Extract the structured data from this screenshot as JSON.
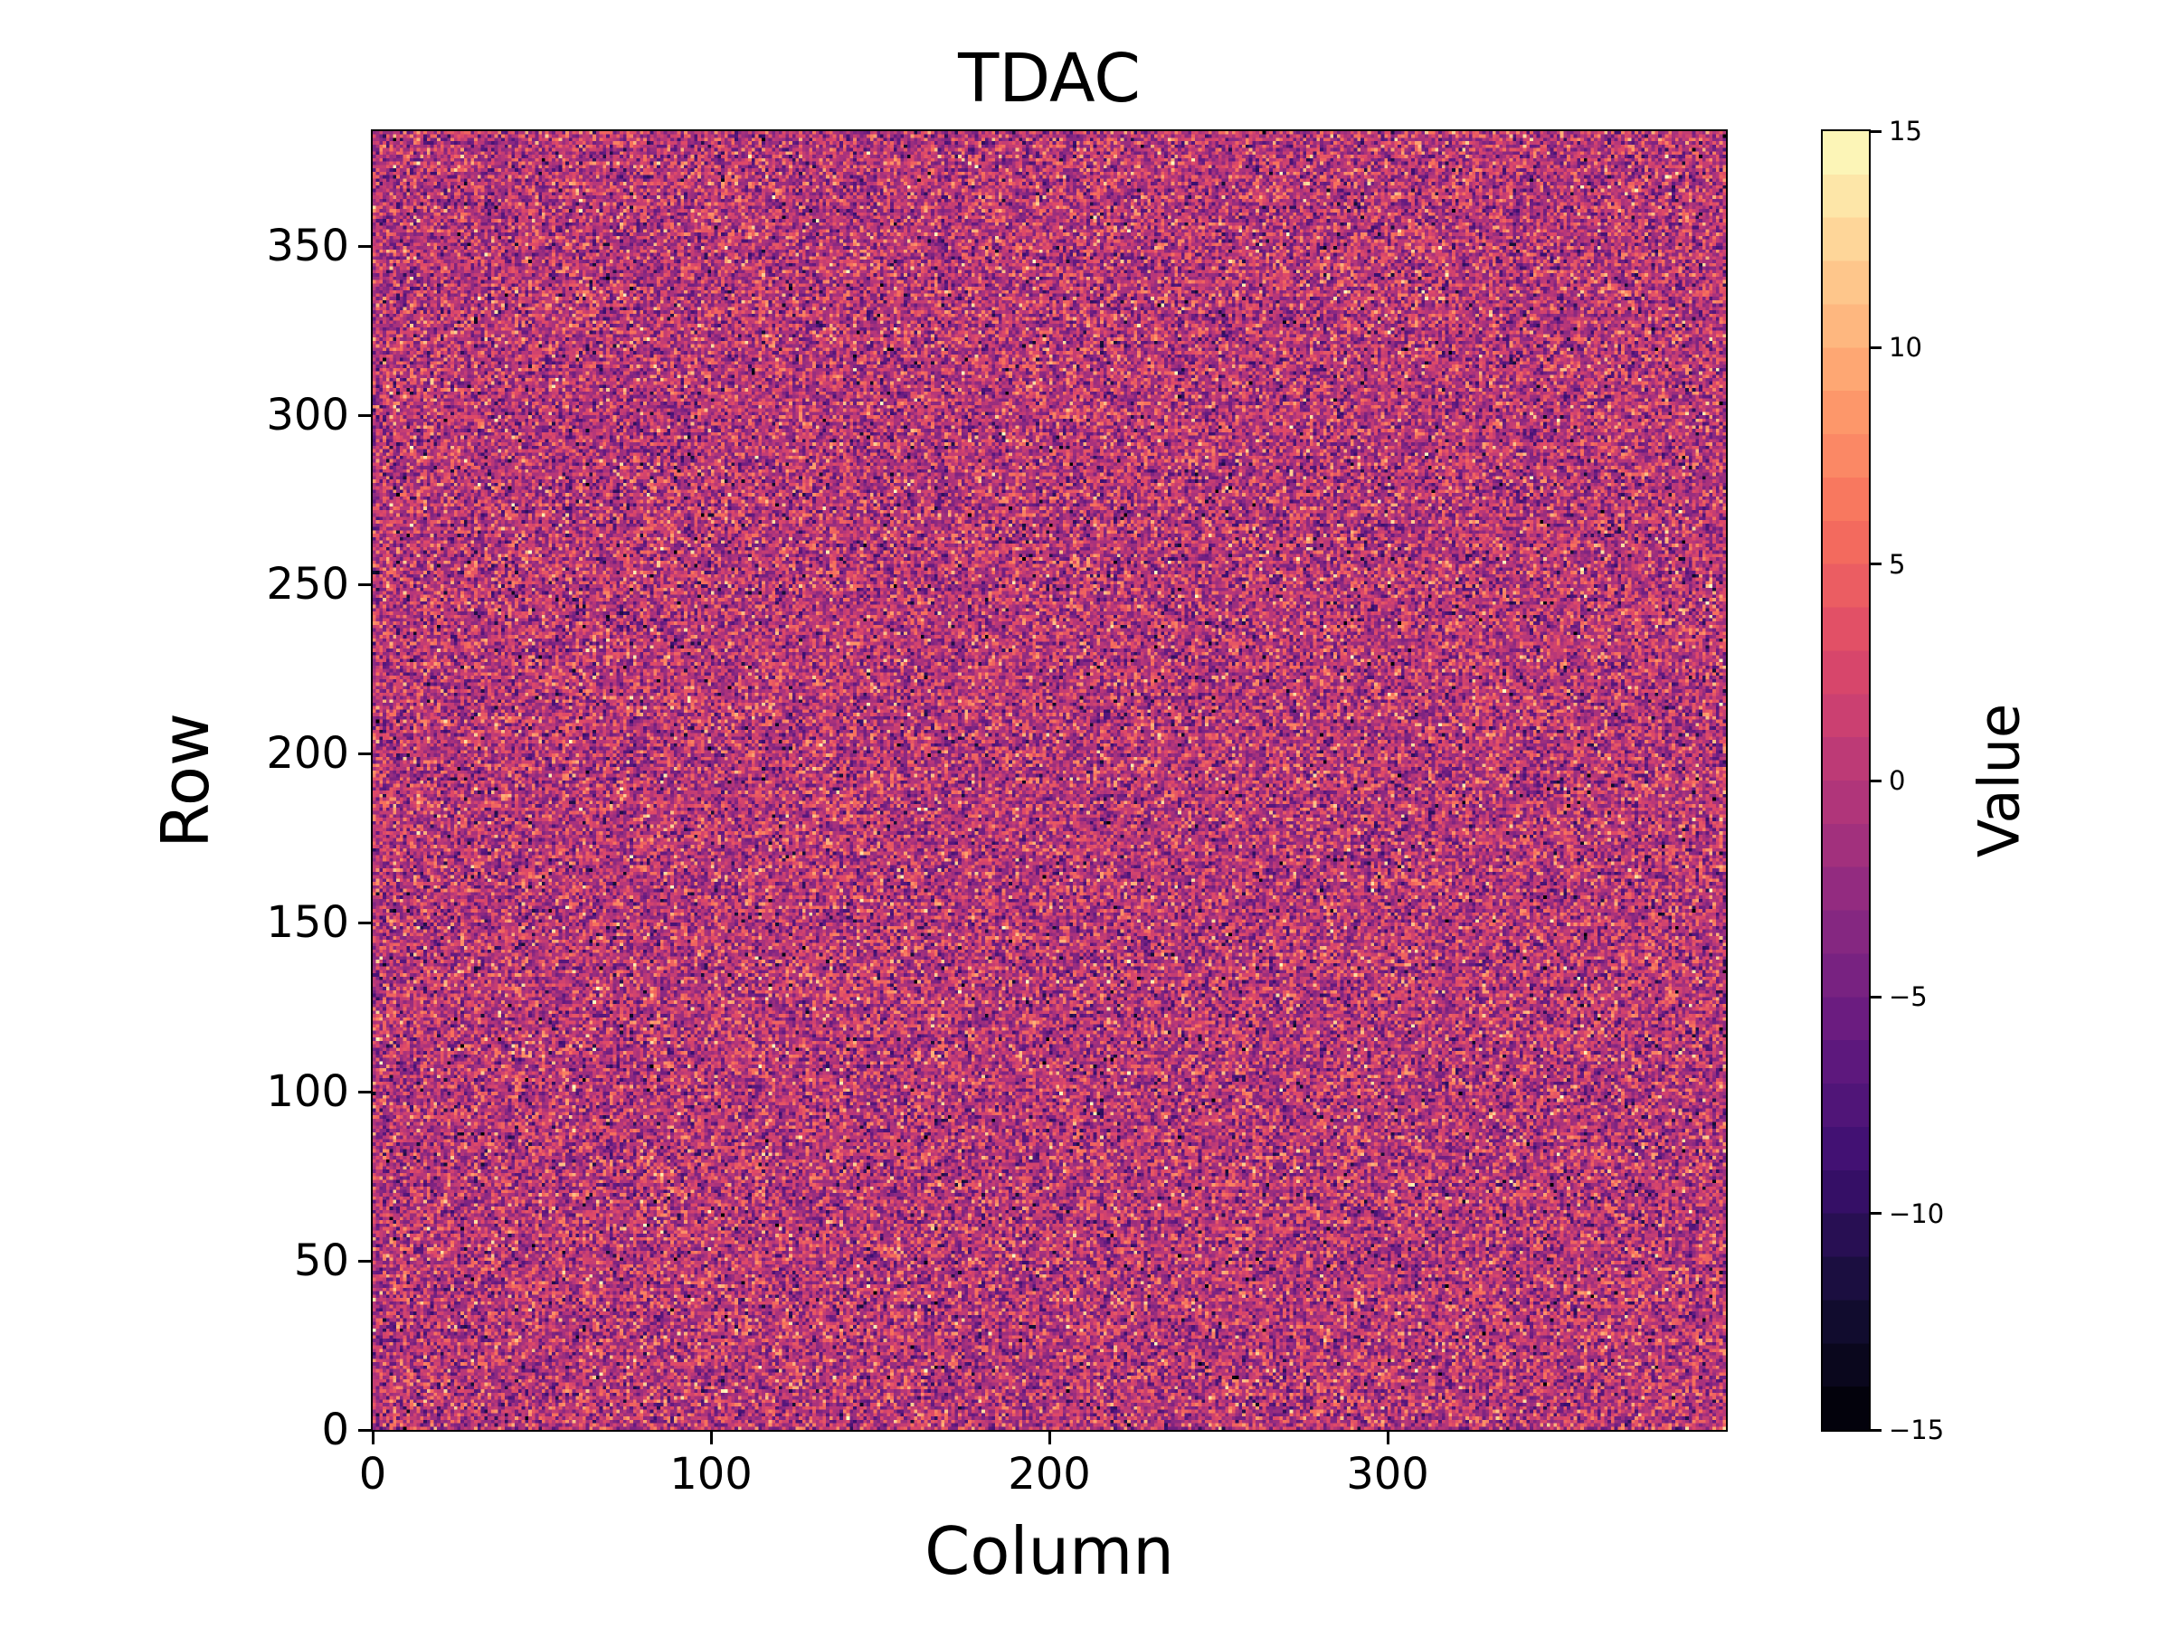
{
  "figure": {
    "background": "#ffffff"
  },
  "chart_data": {
    "type": "heatmap",
    "title": "TDAC",
    "xlabel": "Column",
    "ylabel": "Row",
    "colorbar_label": "Value",
    "vmin": -15,
    "vmax": 15,
    "ncols": 400,
    "nrows": 384,
    "xlim": [
      0,
      400
    ],
    "ylim": [
      0,
      384
    ],
    "x_ticks": [
      0,
      100,
      200,
      300
    ],
    "y_ticks": [
      0,
      50,
      100,
      150,
      200,
      250,
      300,
      350
    ],
    "colorbar_ticks": [
      {
        "value": 15,
        "label": "15"
      },
      {
        "value": 10,
        "label": "10"
      },
      {
        "value": 5,
        "label": "5"
      },
      {
        "value": 0,
        "label": "0"
      },
      {
        "value": -5,
        "label": "−5"
      },
      {
        "value": -10,
        "label": "−10"
      },
      {
        "value": -15,
        "label": "−15"
      }
    ],
    "colorbar_levels": 30,
    "colormap": {
      "name": "magma",
      "stops": [
        "#000004",
        "#140e36",
        "#3b0f70",
        "#641a80",
        "#8c2981",
        "#b73779",
        "#de4968",
        "#f7705c",
        "#fe9f6d",
        "#fece91",
        "#fcfdbf"
      ]
    },
    "data_generation": {
      "description": "400x384 grid of per-pixel TDAC values; random noise centered on 0 spanning -15..15",
      "distribution": "gaussian",
      "mean": 0,
      "std": 4.5,
      "integer": true,
      "clip": [
        -15,
        15
      ],
      "seed": 42,
      "origin": "lower"
    }
  }
}
